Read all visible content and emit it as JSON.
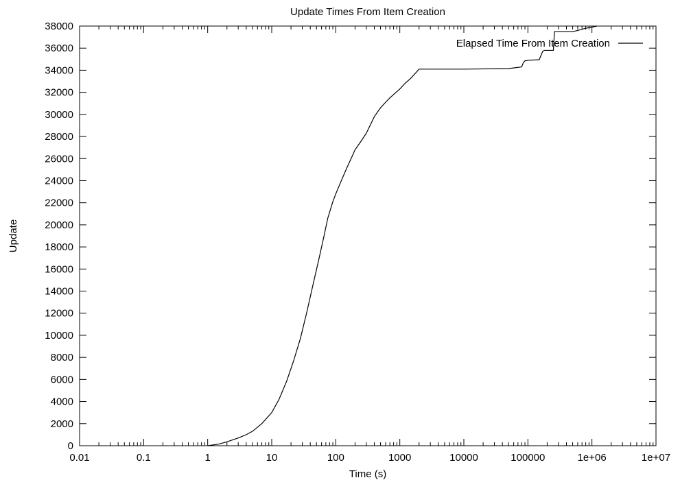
{
  "chart_data": {
    "type": "line",
    "title": "Update Times From Item Creation",
    "xlabel": "Time (s)",
    "ylabel": "Update",
    "xscale": "log",
    "xlim": [
      0.01,
      10000000
    ],
    "ylim": [
      0,
      38000
    ],
    "x_ticks": [
      0.01,
      0.1,
      1,
      10,
      100,
      1000,
      10000,
      100000,
      1000000,
      10000000
    ],
    "x_tick_labels": [
      "0.01",
      "0.1",
      "1",
      "10",
      "100",
      "1000",
      "10000",
      "100000",
      "1e+06",
      "1e+07"
    ],
    "y_ticks": [
      0,
      2000,
      4000,
      6000,
      8000,
      10000,
      12000,
      14000,
      16000,
      18000,
      20000,
      22000,
      24000,
      26000,
      28000,
      30000,
      32000,
      34000,
      36000,
      38000
    ],
    "y_tick_labels": [
      "0",
      "2000",
      "4000",
      "6000",
      "8000",
      "10000",
      "12000",
      "14000",
      "16000",
      "18000",
      "20000",
      "22000",
      "24000",
      "26000",
      "28000",
      "30000",
      "32000",
      "34000",
      "36000",
      "38000"
    ],
    "grid": false,
    "legend_position": "top-right",
    "series": [
      {
        "name": "Elapsed Time From Item Creation",
        "color": "#000000",
        "x": [
          1,
          1.5,
          2,
          3,
          4,
          5,
          7,
          10,
          13,
          17,
          22,
          28,
          35,
          45,
          55,
          65,
          75,
          90,
          100,
          120,
          150,
          180,
          200,
          250,
          300,
          350,
          400,
          500,
          600,
          700,
          800,
          1000,
          1200,
          1500,
          2000,
          3000,
          10000,
          50000,
          80000,
          85000,
          90000,
          100000,
          150000,
          170000,
          180000,
          250000,
          260000,
          500000,
          600000,
          800000,
          1000000,
          1200000
        ],
        "y": [
          0,
          150,
          350,
          700,
          1000,
          1300,
          2000,
          3000,
          4200,
          5800,
          7700,
          9700,
          12000,
          14800,
          17000,
          18900,
          20600,
          22100,
          22800,
          23900,
          25200,
          26200,
          26800,
          27600,
          28300,
          29100,
          29800,
          30600,
          31100,
          31500,
          31800,
          32300,
          32800,
          33300,
          34100,
          34100,
          34100,
          34150,
          34300,
          34700,
          34850,
          34900,
          34950,
          35700,
          35800,
          35800,
          37500,
          37500,
          37600,
          37800,
          37900,
          38000
        ]
      }
    ]
  }
}
